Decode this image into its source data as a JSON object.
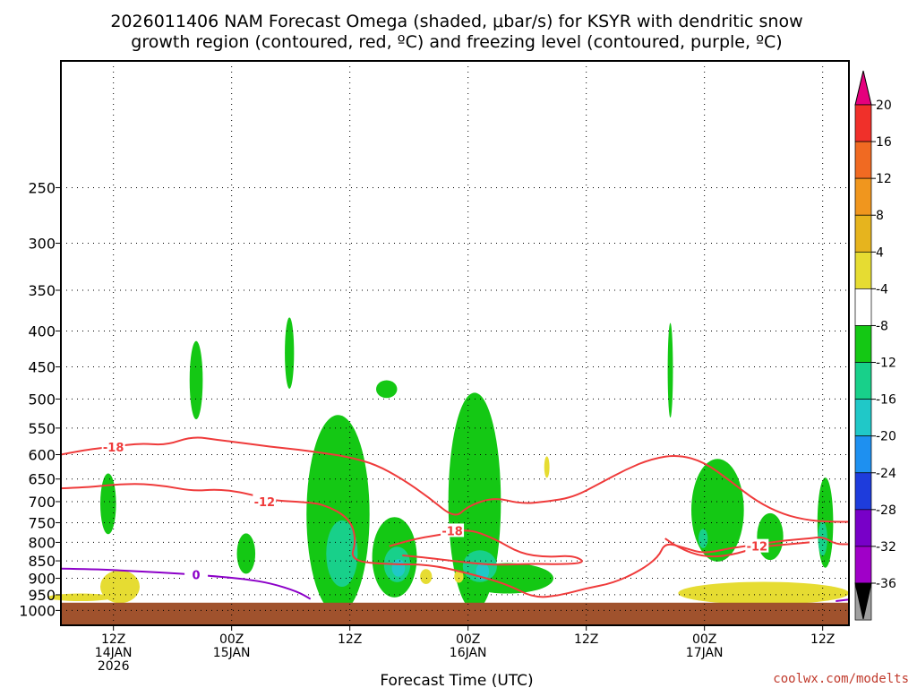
{
  "chart_data": {
    "type": "time-height contour",
    "title_line1": "2026011406 NAM Forecast Omega (shaded, μbar/s) for KSYR with dendritic snow",
    "title_line2": "growth region (contoured, red, ºC) and freezing level (contoured, purple, ºC)",
    "xlabel": "Forecast Time (UTC)",
    "credit": "coolwx.com/modelts",
    "x_hours_since_start": [
      0,
      60
    ],
    "x_ticks": [
      {
        "hour": 4,
        "lines": [
          "12Z",
          "14JAN",
          "2026"
        ]
      },
      {
        "hour": 13,
        "lines": [
          "00Z",
          "15JAN"
        ]
      },
      {
        "hour": 22,
        "lines": [
          "12Z"
        ]
      },
      {
        "hour": 31,
        "lines": [
          "00Z",
          "16JAN"
        ]
      },
      {
        "hour": 40,
        "lines": [
          "12Z"
        ]
      },
      {
        "hour": 49,
        "lines": [
          "00Z",
          "17JAN"
        ]
      },
      {
        "hour": 58,
        "lines": [
          "12Z"
        ]
      }
    ],
    "y_range_hpa": [
      1050,
      165
    ],
    "y_ticks": [
      250,
      300,
      350,
      400,
      450,
      500,
      550,
      600,
      650,
      700,
      750,
      800,
      850,
      900,
      950,
      1000
    ],
    "colorbar": {
      "ticks": [
        "20",
        "16",
        "12",
        "8",
        "4",
        "-4",
        "-8",
        "-12",
        "-16",
        "-20",
        "-24",
        "-28",
        "-32",
        "-36"
      ],
      "colors": [
        "#e5007d",
        "#f0302a",
        "#f06a22",
        "#f0961e",
        "#e6b41e",
        "#e6dc32",
        "#ffffff",
        "#14c814",
        "#18d08a",
        "#20c8c8",
        "#1e90f0",
        "#1e3cdc",
        "#7800c8",
        "#a000c8",
        "#a0a0a0",
        "#000000"
      ]
    },
    "omega_regions": [
      {
        "color": "#14c814",
        "center": [
          10.3,
          470
        ],
        "halfwidth": 0.5,
        "halfheight": 60
      },
      {
        "color": "#14c814",
        "center": [
          17.4,
          430
        ],
        "halfwidth": 0.35,
        "halfheight": 50
      },
      {
        "color": "#14c814",
        "center": [
          3.6,
          705
        ],
        "halfwidth": 0.6,
        "halfheight": 70
      },
      {
        "color": "#14c814",
        "center": [
          14.1,
          830
        ],
        "halfwidth": 0.7,
        "halfheight": 55
      },
      {
        "color": "#14c814",
        "center": [
          21.1,
          730
        ],
        "halfwidth": 2.4,
        "halfheight": 230
      },
      {
        "color": "#14c814",
        "center": [
          25.4,
          840
        ],
        "halfwidth": 1.7,
        "halfheight": 110
      },
      {
        "color": "#14c814",
        "center": [
          24.8,
          484
        ],
        "halfwidth": 0.8,
        "halfheight": 14
      },
      {
        "color": "#14c814",
        "center": [
          31.5,
          700
        ],
        "halfwidth": 2.0,
        "halfheight": 240
      },
      {
        "color": "#14c814",
        "center": [
          34.0,
          900
        ],
        "halfwidth": 3.5,
        "halfheight": 45
      },
      {
        "color": "#14c814",
        "center": [
          46.4,
          455
        ],
        "halfwidth": 0.2,
        "halfheight": 70
      },
      {
        "color": "#14c814",
        "center": [
          50.0,
          720
        ],
        "halfwidth": 2.0,
        "halfheight": 120
      },
      {
        "color": "#14c814",
        "center": [
          54.0,
          785
        ],
        "halfwidth": 1.0,
        "halfheight": 60
      },
      {
        "color": "#14c814",
        "center": [
          58.2,
          750
        ],
        "halfwidth": 0.6,
        "halfheight": 110
      },
      {
        "color": "#18d08a",
        "center": [
          21.4,
          830
        ],
        "halfwidth": 1.2,
        "halfheight": 90
      },
      {
        "color": "#18d08a",
        "center": [
          25.6,
          860
        ],
        "halfwidth": 1.0,
        "halfheight": 50
      },
      {
        "color": "#18d08a",
        "center": [
          31.9,
          865
        ],
        "halfwidth": 1.3,
        "halfheight": 45
      },
      {
        "color": "#18d08a",
        "center": [
          58.0,
          790
        ],
        "halfwidth": 0.35,
        "halfheight": 45
      },
      {
        "color": "#18d08a",
        "center": [
          48.9,
          790
        ],
        "halfwidth": 0.35,
        "halfheight": 25
      },
      {
        "color": "#20c8c8",
        "center": [
          25.7,
          870
        ],
        "halfwidth": 0.5,
        "halfheight": 25
      },
      {
        "color": "#20c8c8",
        "center": [
          32.1,
          880
        ],
        "halfwidth": 0.5,
        "halfheight": 25
      },
      {
        "color": "#e6dc32",
        "center": [
          4.5,
          925
        ],
        "halfwidth": 1.5,
        "halfheight": 50
      },
      {
        "color": "#e6dc32",
        "center": [
          1.5,
          958
        ],
        "halfwidth": 2.5,
        "halfheight": 12
      },
      {
        "color": "#e6dc32",
        "center": [
          27.8,
          895
        ],
        "halfwidth": 0.45,
        "halfheight": 22
      },
      {
        "color": "#e6dc32",
        "center": [
          30.3,
          895
        ],
        "halfwidth": 0.35,
        "halfheight": 18
      },
      {
        "color": "#e6dc32",
        "center": [
          37.0,
          625
        ],
        "halfwidth": 0.2,
        "halfheight": 22
      },
      {
        "color": "#e6dc32",
        "center": [
          53.5,
          945
        ],
        "halfwidth": 6.5,
        "halfheight": 35
      }
    ],
    "dgz_contours": [
      {
        "label": "-18",
        "label_at": [
          4.0,
          585
        ],
        "points": [
          [
            0,
            600
          ],
          [
            2,
            590
          ],
          [
            4,
            585
          ],
          [
            6,
            578
          ],
          [
            8,
            582
          ],
          [
            10,
            565
          ],
          [
            12,
            572
          ],
          [
            14,
            578
          ],
          [
            16,
            585
          ],
          [
            18,
            590
          ],
          [
            20,
            597
          ],
          [
            22,
            605
          ],
          [
            24,
            620
          ],
          [
            26,
            650
          ],
          [
            28,
            690
          ],
          [
            30,
            740
          ],
          [
            31,
            710
          ],
          [
            33,
            690
          ],
          [
            35,
            705
          ],
          [
            37,
            700
          ],
          [
            39,
            690
          ],
          [
            41,
            660
          ],
          [
            43,
            630
          ],
          [
            45,
            608
          ],
          [
            47,
            600
          ],
          [
            49,
            615
          ],
          [
            51,
            655
          ],
          [
            53,
            700
          ],
          [
            55,
            730
          ],
          [
            57,
            745
          ],
          [
            59,
            748
          ],
          [
            60,
            748
          ]
        ]
      },
      {
        "label": "-12",
        "label_at": [
          15.5,
          700
        ],
        "points": [
          [
            0,
            670
          ],
          [
            2,
            668
          ],
          [
            4,
            662
          ],
          [
            6,
            660
          ],
          [
            8,
            665
          ],
          [
            10,
            676
          ],
          [
            12,
            672
          ],
          [
            14,
            680
          ],
          [
            16,
            697
          ],
          [
            18,
            700
          ],
          [
            20,
            705
          ],
          [
            22,
            740
          ],
          [
            22.5,
            795
          ],
          [
            22,
            850
          ],
          [
            25,
            860
          ],
          [
            28,
            860
          ],
          [
            31,
            885
          ],
          [
            34,
            918
          ],
          [
            36,
            960
          ],
          [
            38,
            952
          ],
          [
            40,
            930
          ],
          [
            42,
            915
          ],
          [
            44,
            880
          ],
          [
            45.5,
            840
          ],
          [
            46,
            800
          ],
          [
            47.5,
            815
          ],
          [
            49,
            830
          ],
          [
            51,
            815
          ],
          [
            53,
            806
          ],
          [
            55,
            795
          ],
          [
            57,
            790
          ],
          [
            58,
            785
          ],
          [
            59,
            805
          ],
          [
            60,
            805
          ]
        ]
      },
      {
        "label": "-18",
        "label_at": [
          29.8,
          770
        ],
        "points": [
          [
            25,
            810
          ],
          [
            27,
            790
          ],
          [
            29,
            780
          ],
          [
            31,
            765
          ],
          [
            33,
            790
          ],
          [
            35,
            830
          ],
          [
            37,
            840
          ],
          [
            39,
            835
          ],
          [
            40,
            855
          ],
          [
            38,
            860
          ],
          [
            36,
            858
          ],
          [
            33,
            862
          ],
          [
            31,
            855
          ],
          [
            28,
            842
          ],
          [
            26,
            835
          ]
        ]
      },
      {
        "label": "-12",
        "label_at": [
          53.0,
          810
        ],
        "points": [
          [
            46,
            790
          ],
          [
            47,
            815
          ],
          [
            49,
            840
          ],
          [
            51,
            835
          ],
          [
            53,
            813
          ],
          [
            55,
            806
          ],
          [
            57,
            800
          ]
        ]
      }
    ],
    "freezing_level": {
      "label": "0",
      "label_at": [
        10.3,
        890
      ],
      "points": [
        [
          0,
          872
        ],
        [
          3,
          874
        ],
        [
          6,
          880
        ],
        [
          9,
          886
        ],
        [
          12,
          895
        ],
        [
          14,
          902
        ],
        [
          16,
          915
        ],
        [
          18,
          940
        ],
        [
          19,
          963
        ]
      ],
      "end_points": [
        [
          59,
          970
        ],
        [
          60,
          965
        ]
      ]
    }
  }
}
